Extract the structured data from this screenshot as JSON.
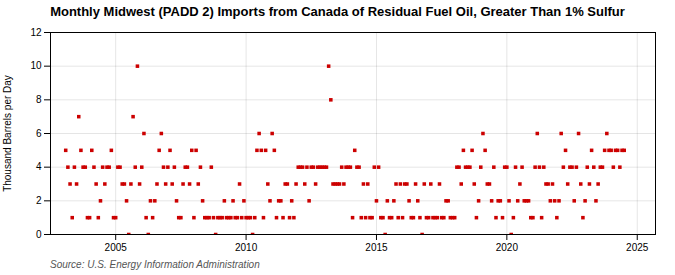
{
  "chart_data": {
    "type": "scatter",
    "title": "Monthly Midwest (PADD 2) Imports from Canada of Residual Fuel Oil, Greater Than 1% Sulfur",
    "ylabel": "Thousand Barrels per Day",
    "caption": "Source: U.S. Energy Information Administration",
    "color": "#cc0000",
    "marker": "square",
    "grid": true,
    "xlim": [
      2002.5,
      2025.7
    ],
    "xticks": [
      2005,
      2010,
      2015,
      2020,
      2025
    ],
    "ylim": [
      0,
      12
    ],
    "yticks": [
      0,
      2,
      4,
      6,
      8,
      10,
      12
    ],
    "x": [
      2003.0833,
      2003.1667,
      2003.25,
      2003.3333,
      2003.4167,
      2003.5,
      2003.5833,
      2003.6667,
      2003.75,
      2003.8333,
      2003.9167,
      2004.0,
      2004.0833,
      2004.1667,
      2004.25,
      2004.3333,
      2004.4167,
      2004.5,
      2004.5833,
      2004.6667,
      2004.75,
      2004.8333,
      2004.9167,
      2005.0,
      2005.0833,
      2005.1667,
      2005.25,
      2005.3333,
      2005.4167,
      2005.5,
      2005.5833,
      2005.6667,
      2005.75,
      2005.8333,
      2005.9167,
      2006.0,
      2006.0833,
      2006.1667,
      2006.25,
      2006.3333,
      2006.4167,
      2006.5,
      2006.5833,
      2006.6667,
      2006.75,
      2006.8333,
      2006.9167,
      2007.0,
      2007.0833,
      2007.1667,
      2007.25,
      2007.3333,
      2007.4167,
      2007.5,
      2007.5833,
      2007.6667,
      2007.75,
      2007.8333,
      2007.9167,
      2008.0,
      2008.0833,
      2008.1667,
      2008.25,
      2008.3333,
      2008.4167,
      2008.5,
      2008.5833,
      2008.6667,
      2008.75,
      2008.8333,
      2008.9167,
      2009.0,
      2009.0833,
      2009.1667,
      2009.25,
      2009.3333,
      2009.4167,
      2009.5,
      2009.5833,
      2009.6667,
      2009.75,
      2009.8333,
      2009.9167,
      2010.0,
      2010.0833,
      2010.1667,
      2010.25,
      2010.3333,
      2010.4167,
      2010.5,
      2010.5833,
      2010.6667,
      2010.75,
      2010.8333,
      2010.9167,
      2011.0,
      2011.0833,
      2011.1667,
      2011.25,
      2011.3333,
      2011.4167,
      2011.5,
      2011.5833,
      2011.6667,
      2011.75,
      2011.8333,
      2011.9167,
      2012.0,
      2012.0833,
      2012.1667,
      2012.25,
      2012.3333,
      2012.4167,
      2012.5,
      2012.5833,
      2012.6667,
      2012.75,
      2012.8333,
      2012.9167,
      2013.0,
      2013.0833,
      2013.1667,
      2013.25,
      2013.3333,
      2013.4167,
      2013.5,
      2013.5833,
      2013.6667,
      2013.75,
      2013.8333,
      2013.9167,
      2014.0,
      2014.0833,
      2014.1667,
      2014.25,
      2014.3333,
      2014.4167,
      2014.5,
      2014.5833,
      2014.6667,
      2014.75,
      2014.8333,
      2014.9167,
      2015.0,
      2015.0833,
      2015.1667,
      2015.25,
      2015.3333,
      2015.4167,
      2015.5,
      2015.5833,
      2015.6667,
      2015.75,
      2015.8333,
      2015.9167,
      2016.0,
      2016.0833,
      2016.1667,
      2016.25,
      2016.3333,
      2016.4167,
      2016.5,
      2016.5833,
      2016.6667,
      2016.75,
      2016.8333,
      2016.9167,
      2017.0,
      2017.0833,
      2017.1667,
      2017.25,
      2017.3333,
      2017.4167,
      2017.5,
      2017.5833,
      2017.6667,
      2017.75,
      2017.8333,
      2017.9167,
      2018.0,
      2018.0833,
      2018.1667,
      2018.25,
      2018.3333,
      2018.4167,
      2018.5,
      2018.5833,
      2018.6667,
      2018.75,
      2018.8333,
      2018.9167,
      2019.0,
      2019.0833,
      2019.1667,
      2019.25,
      2019.3333,
      2019.4167,
      2019.5,
      2019.5833,
      2019.6667,
      2019.75,
      2019.8333,
      2019.9167,
      2020.0,
      2020.0833,
      2020.1667,
      2020.25,
      2020.3333,
      2020.4167,
      2020.5,
      2020.5833,
      2020.6667,
      2020.75,
      2020.8333,
      2020.9167,
      2021.0,
      2021.0833,
      2021.1667,
      2021.25,
      2021.3333,
      2021.4167,
      2021.5,
      2021.5833,
      2021.6667,
      2021.75,
      2021.8333,
      2021.9167,
      2022.0,
      2022.0833,
      2022.1667,
      2022.25,
      2022.3333,
      2022.4167,
      2022.5,
      2022.5833,
      2022.6667,
      2022.75,
      2022.8333,
      2022.9167,
      2023.0,
      2023.0833,
      2023.1667,
      2023.25,
      2023.3333,
      2023.4167,
      2023.5,
      2023.5833,
      2023.6667,
      2023.75,
      2023.8333,
      2023.9167,
      2024.0,
      2024.0833,
      2024.1667,
      2024.25,
      2024.3333,
      2024.4167,
      2024.5
    ],
    "values": [
      5,
      4,
      3,
      1,
      4,
      3,
      7,
      5,
      4,
      4,
      1,
      1,
      5,
      4,
      3,
      1,
      2,
      4,
      3,
      4,
      4,
      5,
      1,
      1,
      4,
      4,
      3,
      3,
      2,
      0,
      3,
      7,
      4,
      10,
      3,
      4,
      6,
      1,
      0,
      2,
      1,
      2,
      3,
      5,
      6,
      4,
      3,
      4,
      5,
      3,
      4,
      2,
      1,
      1,
      3,
      4,
      4,
      3,
      5,
      1,
      5,
      3,
      4,
      2,
      1,
      1,
      1,
      4,
      1,
      0,
      1,
      1,
      1,
      2,
      1,
      1,
      1,
      2,
      1,
      1,
      3,
      1,
      2,
      1,
      1,
      1,
      0,
      1,
      5,
      6,
      5,
      1,
      5,
      3,
      2,
      6,
      5,
      1,
      2,
      2,
      1,
      3,
      3,
      1,
      2,
      1,
      3,
      4,
      4,
      4,
      3,
      4,
      2,
      4,
      4,
      3,
      4,
      4,
      4,
      4,
      4,
      10,
      8,
      3,
      3,
      3,
      3,
      4,
      3,
      4,
      4,
      4,
      1,
      5,
      4,
      4,
      1,
      3,
      1,
      3,
      1,
      1,
      4,
      2,
      4,
      1,
      1,
      0,
      2,
      1,
      1,
      2,
      3,
      1,
      3,
      1,
      3,
      3,
      2,
      1,
      1,
      3,
      2,
      1,
      0,
      3,
      1,
      1,
      3,
      1,
      1,
      1,
      3,
      1,
      1,
      2,
      2,
      1,
      1,
      1,
      4,
      4,
      3,
      5,
      4,
      4,
      4,
      5,
      3,
      1,
      2,
      4,
      6,
      5,
      3,
      3,
      2,
      4,
      1,
      2,
      2,
      1,
      4,
      4,
      2,
      0,
      1,
      4,
      2,
      3,
      4,
      2,
      2,
      2,
      1,
      1,
      4,
      6,
      4,
      1,
      4,
      3,
      3,
      2,
      3,
      2,
      1,
      2,
      6,
      4,
      5,
      3,
      4,
      4,
      2,
      4,
      6,
      3,
      1,
      2,
      4,
      3,
      5,
      4,
      2,
      3,
      4,
      4,
      5,
      6,
      5,
      5,
      4,
      5,
      5,
      4,
      5,
      5
    ]
  }
}
